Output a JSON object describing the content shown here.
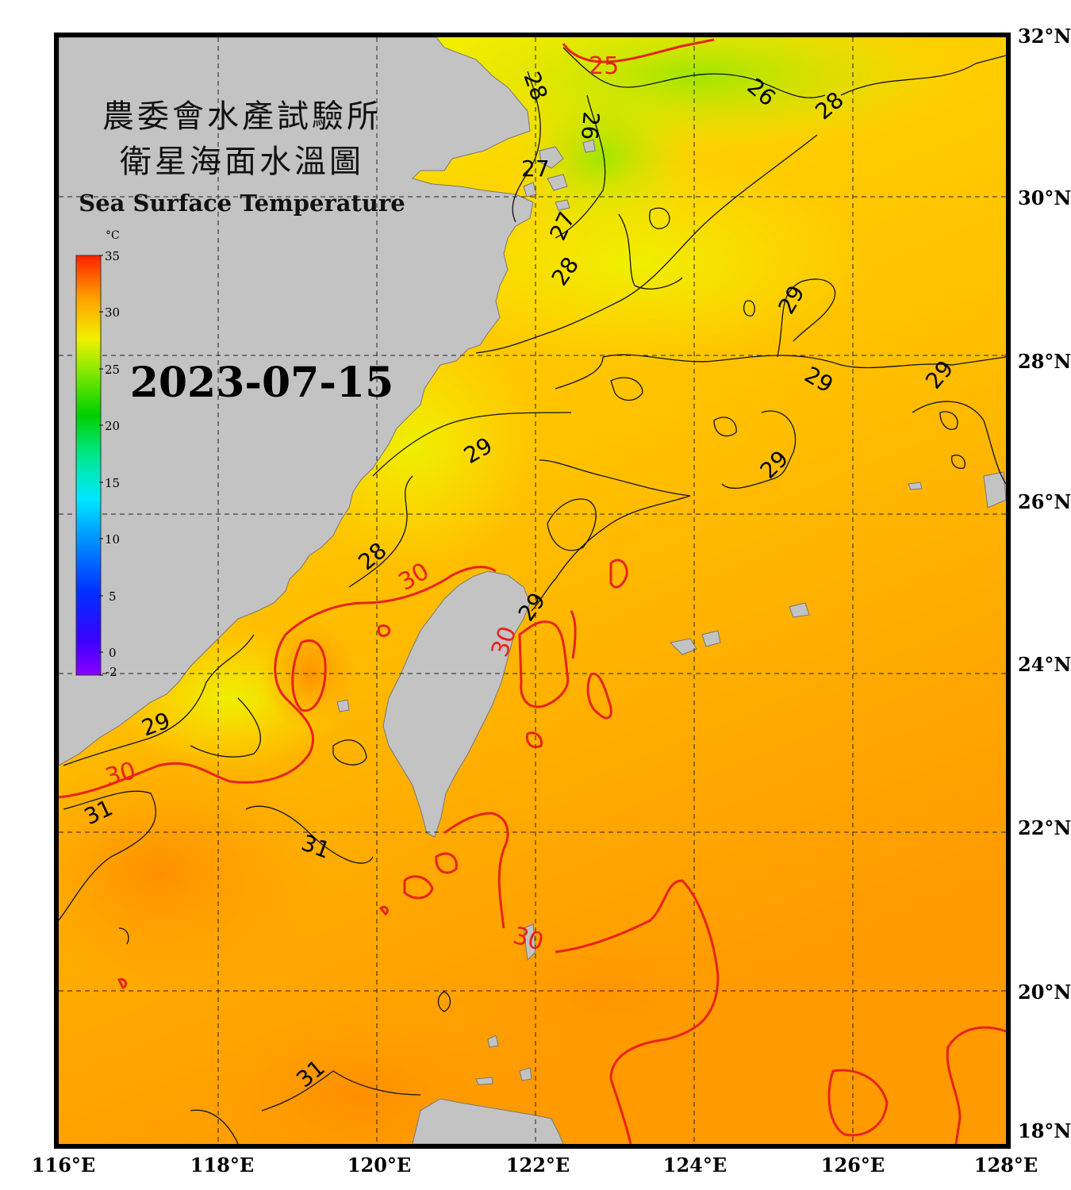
{
  "title": {
    "line1": "農委會水產試驗所",
    "line2": "衛星海面水溫圖",
    "english": "Sea Surface Temperature"
  },
  "date": "2023-07-15",
  "colorbar": {
    "unit": "°C",
    "ticks": [
      "35",
      "30",
      "25",
      "20",
      "15",
      "10",
      "5",
      "0",
      "-2"
    ],
    "min": -2,
    "max": 35
  },
  "map_extent": {
    "lon": [
      116,
      128
    ],
    "lat": [
      18,
      32
    ]
  },
  "axes": {
    "lat_labels": [
      "32°N",
      "30°N",
      "28°N",
      "26°N",
      "24°N",
      "22°N",
      "20°N",
      "18°N"
    ],
    "lon_labels": [
      "116°E",
      "118°E",
      "120°E",
      "122°E",
      "124°E",
      "126°E",
      "128°E"
    ]
  },
  "contour_labels": {
    "black": [
      "28",
      "26",
      "26",
      "28",
      "27",
      "27",
      "28",
      "29",
      "29",
      "29",
      "29",
      "29",
      "28",
      "29",
      "29",
      "31",
      "31",
      "31"
    ],
    "red": [
      "25",
      "30",
      "30",
      "30",
      "30"
    ]
  },
  "colors": {
    "land": "#c3c3c3",
    "frame": "#000000",
    "contour_red": "#e8231a",
    "contour_black": "#111111",
    "sea_cool": "#b6f000",
    "sea_warm": "#ff9c00"
  }
}
